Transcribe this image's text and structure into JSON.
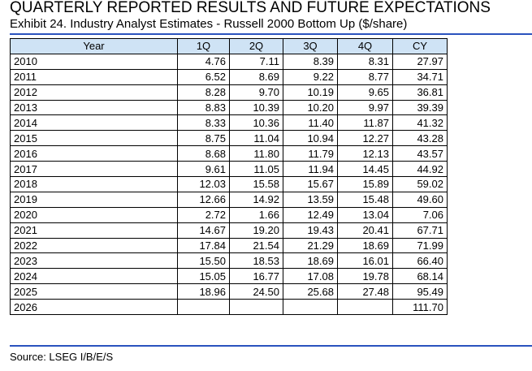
{
  "header": {
    "title": "QUARTERLY REPORTED RESULTS AND FUTURE EXPECTATIONS",
    "subtitle": "Exhibit 24. Industry Analyst Estimates - Russell 2000 Bottom Up ($/share)"
  },
  "table": {
    "columns": [
      "Year",
      "1Q",
      "2Q",
      "3Q",
      "4Q",
      "CY"
    ],
    "rows": [
      [
        "2010",
        "4.76",
        "7.11",
        "8.39",
        "8.31",
        "27.97"
      ],
      [
        "2011",
        "6.52",
        "8.69",
        "9.22",
        "8.77",
        "34.71"
      ],
      [
        "2012",
        "8.28",
        "9.70",
        "10.19",
        "9.65",
        "36.81"
      ],
      [
        "2013",
        "8.83",
        "10.39",
        "10.20",
        "9.97",
        "39.39"
      ],
      [
        "2014",
        "8.33",
        "10.36",
        "11.40",
        "11.87",
        "41.32"
      ],
      [
        "2015",
        "8.75",
        "11.04",
        "10.94",
        "12.27",
        "43.28"
      ],
      [
        "2016",
        "8.68",
        "11.80",
        "11.79",
        "12.13",
        "43.57"
      ],
      [
        "2017",
        "9.61",
        "11.05",
        "11.94",
        "14.45",
        "44.92"
      ],
      [
        "2018",
        "12.03",
        "15.58",
        "15.67",
        "15.89",
        "59.02"
      ],
      [
        "2019",
        "12.66",
        "14.92",
        "13.59",
        "15.48",
        "49.60"
      ],
      [
        "2020",
        "2.72",
        "1.66",
        "12.49",
        "13.04",
        "7.06"
      ],
      [
        "2021",
        "14.67",
        "19.20",
        "19.43",
        "20.41",
        "67.71"
      ],
      [
        "2022",
        "17.84",
        "21.54",
        "21.29",
        "18.69",
        "71.99"
      ],
      [
        "2023",
        "15.50",
        "18.53",
        "18.69",
        "16.01",
        "66.40"
      ],
      [
        "2024",
        "15.05",
        "16.77",
        "17.08",
        "19.78",
        "68.14"
      ],
      [
        "2025",
        "18.96",
        "24.50",
        "25.68",
        "27.48",
        "95.49"
      ],
      [
        "2026",
        null,
        null,
        null,
        null,
        "111.70"
      ]
    ]
  },
  "footer": {
    "source": "Source: LSEG I/B/E/S"
  }
}
